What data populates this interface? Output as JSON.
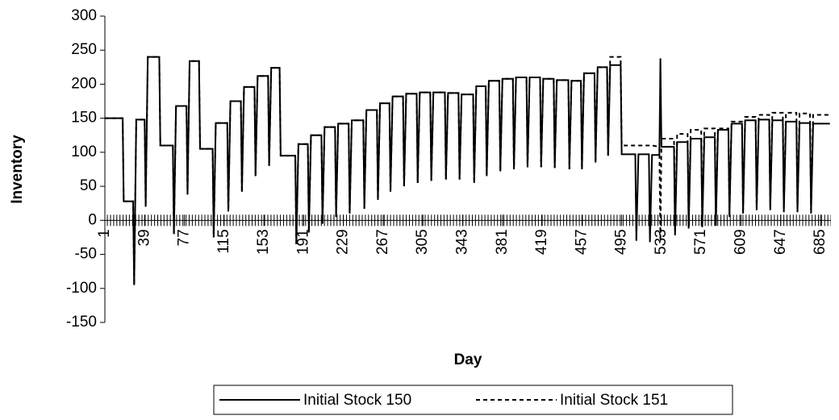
{
  "chart_data": {
    "type": "line",
    "x_label": "Day",
    "y_label": "Inventory",
    "xlim": [
      1,
      695
    ],
    "xticks": [
      1,
      39,
      77,
      115,
      153,
      191,
      229,
      267,
      305,
      343,
      381,
      419,
      457,
      495,
      533,
      571,
      609,
      647,
      685
    ],
    "ylim": [
      -150,
      300
    ],
    "yticks": [
      -150,
      -100,
      -50,
      0,
      50,
      100,
      150,
      200,
      250,
      300
    ],
    "grid": false,
    "legend": "bottom",
    "x": [
      1,
      18,
      19,
      28,
      29,
      31,
      39,
      40,
      42,
      53,
      54,
      66,
      67,
      69,
      79,
      80,
      82,
      91,
      92,
      104,
      105,
      107,
      118,
      119,
      121,
      131,
      132,
      134,
      144,
      145,
      147,
      157,
      158,
      160,
      168,
      169,
      183,
      184,
      186,
      195,
      196,
      198,
      208,
      209,
      211,
      221,
      222,
      224,
      234,
      235,
      237,
      248,
      249,
      251,
      261,
      262,
      264,
      273,
      274,
      276,
      286,
      287,
      289,
      299,
      300,
      302,
      312,
      313,
      315,
      326,
      327,
      329,
      339,
      340,
      342,
      353,
      354,
      356,
      365,
      366,
      368,
      378,
      379,
      381,
      391,
      392,
      394,
      404,
      405,
      407,
      417,
      418,
      420,
      430,
      431,
      433,
      444,
      445,
      447,
      456,
      457,
      459,
      469,
      470,
      472,
      481,
      482,
      484,
      494,
      495,
      508,
      509,
      511,
      521,
      522,
      524,
      531,
      532,
      533,
      545,
      546,
      548,
      558,
      559,
      561,
      571,
      572,
      574,
      584,
      585,
      587,
      597,
      598,
      600,
      610,
      611,
      613,
      623,
      624,
      626,
      636,
      637,
      639,
      649,
      650,
      652,
      662,
      663,
      665,
      675,
      676,
      678,
      694
    ],
    "series": [
      {
        "name": "Initial Stock 150",
        "color": "#000000",
        "dash": "none",
        "values": [
          150,
          150,
          28,
          28,
          -95,
          148,
          148,
          20,
          240,
          240,
          110,
          110,
          -20,
          168,
          168,
          38,
          234,
          234,
          105,
          105,
          -25,
          143,
          143,
          13,
          175,
          175,
          42,
          196,
          196,
          65,
          212,
          212,
          80,
          224,
          224,
          95,
          95,
          -35,
          112,
          112,
          -18,
          125,
          125,
          -5,
          137,
          137,
          5,
          142,
          142,
          10,
          147,
          147,
          17,
          162,
          162,
          30,
          172,
          172,
          42,
          182,
          182,
          50,
          186,
          186,
          55,
          188,
          188,
          58,
          188,
          188,
          60,
          187,
          187,
          60,
          185,
          185,
          55,
          197,
          197,
          65,
          205,
          205,
          72,
          208,
          208,
          75,
          210,
          210,
          78,
          210,
          210,
          78,
          208,
          208,
          77,
          206,
          206,
          75,
          205,
          205,
          75,
          216,
          216,
          85,
          225,
          225,
          95,
          228,
          228,
          97,
          97,
          -30,
          97,
          97,
          -32,
          96,
          96,
          238,
          108,
          108,
          -22,
          115,
          115,
          -12,
          120,
          120,
          -10,
          122,
          122,
          -8,
          133,
          133,
          5,
          142,
          142,
          10,
          147,
          147,
          15,
          148,
          148,
          15,
          147,
          147,
          12,
          145,
          145,
          12,
          143,
          143,
          10,
          142,
          142
        ]
      },
      {
        "name": "Initial Stock 151",
        "color": "#000000",
        "dash": "5,4",
        "values": [
          150,
          150,
          28,
          28,
          -95,
          148,
          148,
          20,
          240,
          240,
          110,
          110,
          -20,
          168,
          168,
          38,
          234,
          234,
          105,
          105,
          -25,
          143,
          143,
          13,
          175,
          175,
          42,
          196,
          196,
          65,
          212,
          212,
          80,
          224,
          224,
          95,
          95,
          -35,
          112,
          112,
          -18,
          125,
          125,
          -5,
          137,
          137,
          5,
          142,
          142,
          10,
          147,
          147,
          17,
          162,
          162,
          30,
          172,
          172,
          42,
          182,
          182,
          50,
          186,
          186,
          55,
          188,
          188,
          58,
          188,
          188,
          60,
          187,
          187,
          60,
          185,
          185,
          55,
          197,
          197,
          65,
          205,
          205,
          72,
          208,
          208,
          75,
          210,
          210,
          78,
          210,
          210,
          78,
          208,
          208,
          77,
          206,
          206,
          75,
          205,
          205,
          75,
          216,
          216,
          85,
          225,
          225,
          95,
          240,
          240,
          110,
          110,
          110,
          110,
          110,
          110,
          110,
          108,
          -30,
          120,
          120,
          -15,
          127,
          127,
          -5,
          133,
          133,
          0,
          135,
          135,
          0,
          135,
          135,
          8,
          145,
          145,
          12,
          152,
          152,
          18,
          155,
          155,
          20,
          158,
          158,
          18,
          158,
          158,
          17,
          157,
          157,
          15,
          155,
          155
        ]
      }
    ]
  }
}
